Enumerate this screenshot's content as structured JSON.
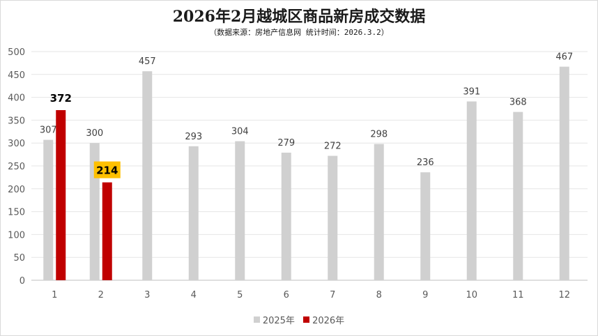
{
  "chart_data": {
    "type": "bar",
    "title": "2026年2月越城区商品新房成交数据",
    "subtitle": "（数据来源：房地产信息网  统计时间：2026.3.2）",
    "categories": [
      "1",
      "2",
      "3",
      "4",
      "5",
      "6",
      "7",
      "8",
      "9",
      "10",
      "11",
      "12"
    ],
    "series": [
      {
        "name": "2025年",
        "color": "#d0d0d0",
        "values": [
          307,
          300,
          457,
          293,
          304,
          279,
          272,
          298,
          236,
          391,
          368,
          467
        ]
      },
      {
        "name": "2026年",
        "color": "#c00000",
        "values": [
          372,
          214,
          null,
          null,
          null,
          null,
          null,
          null,
          null,
          null,
          null,
          null
        ]
      }
    ],
    "ylim": [
      0,
      500
    ],
    "yticks": [
      0,
      50,
      100,
      150,
      200,
      250,
      300,
      350,
      400,
      450,
      500
    ],
    "grid": true,
    "legend_position": "bottom",
    "highlight_label_color": "#ffc000"
  }
}
